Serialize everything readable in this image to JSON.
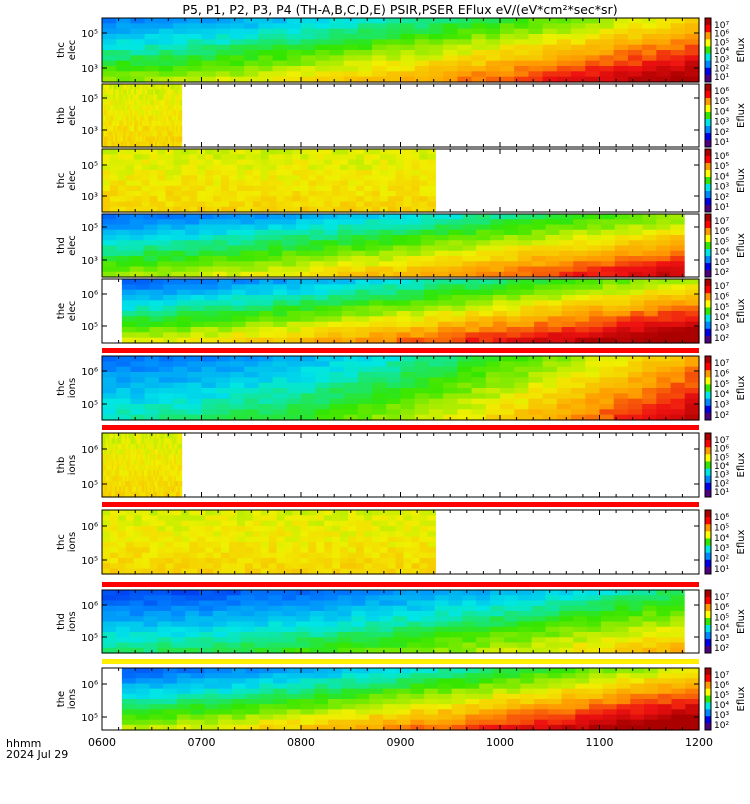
{
  "title": "P5, P1, P2, P3, P4 (TH-A,B,C,D,E) PSIR,PSER EFlux eV/(eV*cm²*sec*sr)",
  "xaxis": {
    "label_top": "hhmm",
    "label_bottom": "2024 Jul 29",
    "ticks": [
      "0600",
      "0700",
      "0800",
      "0900",
      "1000",
      "1100",
      "1200"
    ],
    "range_hours": [
      6,
      12
    ]
  },
  "colorbar_label": "Eflux",
  "chart_data": [
    {
      "type": "heatmap",
      "ylabel": [
        "thc",
        "elec"
      ],
      "yticks": [
        "10⁵",
        "10³"
      ],
      "coverage": [
        6.0,
        12.0
      ],
      "scale": "log",
      "red_bar": false,
      "colorbar_ticks": [
        "10⁷",
        "10⁶",
        "10⁵",
        "10⁴",
        "10³",
        "10²",
        "10¹"
      ],
      "profile": "thc_elec"
    },
    {
      "type": "heatmap",
      "ylabel": [
        "thb",
        "elec"
      ],
      "yticks": [
        "10⁵",
        "10³"
      ],
      "coverage": [
        6.0,
        6.8
      ],
      "scale": "log",
      "red_bar": false,
      "colorbar_ticks": [
        "10⁶",
        "10⁵",
        "10⁴",
        "10³",
        "10²",
        "10¹"
      ],
      "profile": "flat"
    },
    {
      "type": "heatmap",
      "ylabel": [
        "thc",
        "elec"
      ],
      "yticks": [
        "10⁵",
        "10³"
      ],
      "coverage": [
        6.0,
        9.35
      ],
      "scale": "log",
      "red_bar": false,
      "colorbar_ticks": [
        "10⁶",
        "10⁵",
        "10⁴",
        "10³",
        "10²",
        "10¹"
      ],
      "profile": "flat"
    },
    {
      "type": "heatmap",
      "ylabel": [
        "thd",
        "elec"
      ],
      "yticks": [
        "10⁵",
        "10³"
      ],
      "coverage": [
        6.0,
        11.85
      ],
      "scale": "log",
      "red_bar": false,
      "colorbar_ticks": [
        "10⁷",
        "10⁶",
        "10⁵",
        "10⁴",
        "10³",
        "10²"
      ],
      "profile": "thd_elec"
    },
    {
      "type": "heatmap",
      "ylabel": [
        "the",
        "elec"
      ],
      "yticks": [
        "10⁶",
        "10⁵"
      ],
      "coverage": [
        6.2,
        12.0
      ],
      "scale": "log",
      "red_bar": true,
      "colorbar_ticks": [
        "10⁷",
        "10⁶",
        "10⁵",
        "10⁴",
        "10³",
        "10²"
      ],
      "profile": "the_elec"
    },
    {
      "type": "heatmap",
      "ylabel": [
        "thc",
        "ions"
      ],
      "yticks": [
        "10⁶",
        "10⁵"
      ],
      "coverage": [
        6.0,
        12.0
      ],
      "scale": "log",
      "red_bar": true,
      "colorbar_ticks": [
        "10⁷",
        "10⁶",
        "10⁵",
        "10⁴",
        "10³",
        "10²"
      ],
      "profile": "thc_ions"
    },
    {
      "type": "heatmap",
      "ylabel": [
        "thb",
        "ions"
      ],
      "yticks": [
        "10⁶",
        "10⁵"
      ],
      "coverage": [
        6.0,
        6.8
      ],
      "scale": "log",
      "red_bar": true,
      "colorbar_ticks": [
        "10⁷",
        "10⁶",
        "10⁵",
        "10⁴",
        "10³",
        "10²",
        "10¹"
      ],
      "profile": "flat"
    },
    {
      "type": "heatmap",
      "ylabel": [
        "thc",
        "ions"
      ],
      "yticks": [
        "10⁶",
        "10⁵"
      ],
      "coverage": [
        6.0,
        9.35
      ],
      "scale": "log",
      "red_bar": true,
      "colorbar_ticks": [
        "10⁶",
        "10⁵",
        "10⁴",
        "10³",
        "10²",
        "10¹"
      ],
      "profile": "flat"
    },
    {
      "type": "heatmap",
      "ylabel": [
        "thd",
        "ions"
      ],
      "yticks": [
        "10⁶",
        "10⁵"
      ],
      "coverage": [
        6.0,
        11.85
      ],
      "scale": "log",
      "red_bar": false,
      "colorbar_ticks": [
        "10⁷",
        "10⁶",
        "10⁵",
        "10⁴",
        "10³",
        "10²"
      ],
      "profile": "thd_ions"
    },
    {
      "type": "heatmap",
      "ylabel": [
        "the",
        "ions"
      ],
      "yticks": [
        "10⁶",
        "10⁵"
      ],
      "coverage": [
        6.2,
        12.0
      ],
      "scale": "log",
      "red_bar": false,
      "colorbar_ticks": [
        "10⁷",
        "10⁶",
        "10⁵",
        "10⁴",
        "10³",
        "10²"
      ],
      "profile": "the_ions"
    }
  ]
}
